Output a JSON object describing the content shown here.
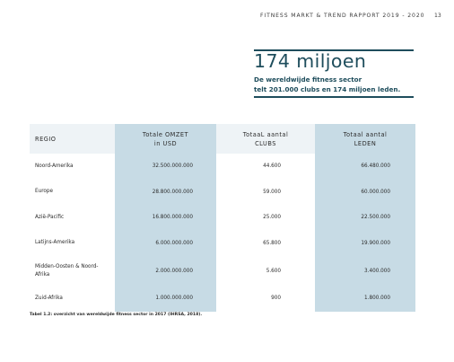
{
  "header": {
    "running_title": "FITNESS MARKT & TREND RAPPORT 2019 - 2020",
    "page_number": "13"
  },
  "headline": {
    "title": "174 miljoen",
    "subtitle_line1": "De wereldwijde fitness sector",
    "subtitle_line2": "telt 201.000 clubs en 174 miljoen leden."
  },
  "table": {
    "columns": {
      "region": "REGIO",
      "omzet_line1": "Totale OMZET",
      "omzet_line2": "in USD",
      "clubs_line1": "TotaaL aantal",
      "clubs_line2": "CLUBS",
      "leden_line1": "Totaal aantal",
      "leden_line2": "LEDEN"
    },
    "rows": [
      {
        "region_line1": "Noord-Amerika",
        "region_line2": "",
        "omzet": "32.500.000.000",
        "clubs": "44.600",
        "leden": "66.480.000"
      },
      {
        "region_line1": "Europe",
        "region_line2": "",
        "omzet": "28.800.000.000",
        "clubs": "59.000",
        "leden": "60.000.000"
      },
      {
        "region_line1": "Azië-Pacific",
        "region_line2": "",
        "omzet": "16.800.000.000",
        "clubs": "25.000",
        "leden": "22.500.000"
      },
      {
        "region_line1": "Latijns-Amerika",
        "region_line2": "",
        "omzet": "6.000.000.000",
        "clubs": "65.800",
        "leden": "19.900.000"
      },
      {
        "region_line1": "Midden-Oosten & Noord-",
        "region_line2": "Afrika",
        "omzet": "2.000.000.000",
        "clubs": "5.600",
        "leden": "3.400.000"
      },
      {
        "region_line1": "Zuid-Afrika",
        "region_line2": "",
        "omzet": "1.000.000.000",
        "clubs": "900",
        "leden": "1.800.000"
      }
    ]
  },
  "caption": "Tabel 1.2: overzicht van wereldwijde fitness sector in 2017 (IHRSA, 2018).",
  "colors": {
    "accent_teal": "#1e4d5c",
    "highlight_column_blue": "#c7dbe5",
    "header_row_background": "#eef3f6"
  }
}
